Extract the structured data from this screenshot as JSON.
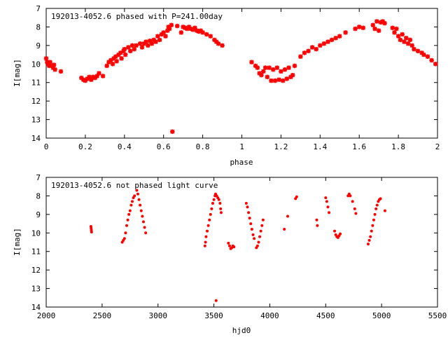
{
  "chart_data": [
    {
      "type": "scatter",
      "title": "192013-4052.6 phased with P=241.00day",
      "xlabel": "phase",
      "ylabel": "I[mag]",
      "xlim": [
        0,
        2
      ],
      "ylim": [
        14,
        7
      ],
      "y_inverted": true,
      "xticks": [
        0,
        0.2,
        0.4,
        0.6,
        0.8,
        1,
        1.2,
        1.4,
        1.6,
        1.8,
        2
      ],
      "xtick_labels": [
        "0",
        "0.2",
        "0.4",
        "0.6",
        "0.8",
        "1",
        "1.2",
        "1.4",
        "1.6",
        "1.8",
        "2"
      ],
      "yticks": [
        7,
        8,
        9,
        10,
        11,
        12,
        13,
        14
      ],
      "ytick_labels": [
        "7",
        "8",
        "9",
        "10",
        "11",
        "12",
        "13",
        "14"
      ],
      "grid": false,
      "marker_color": "#ff0000",
      "marker": "star",
      "points": [
        [
          0.0,
          9.7
        ],
        [
          0.005,
          9.9
        ],
        [
          0.01,
          10.0
        ],
        [
          0.015,
          10.1
        ],
        [
          0.02,
          9.9
        ],
        [
          0.03,
          10.1
        ],
        [
          0.035,
          10.2
        ],
        [
          0.04,
          10.05
        ],
        [
          0.045,
          10.3
        ],
        [
          0.075,
          10.4
        ],
        [
          0.18,
          10.75
        ],
        [
          0.19,
          10.85
        ],
        [
          0.2,
          10.9
        ],
        [
          0.21,
          10.8
        ],
        [
          0.22,
          10.7
        ],
        [
          0.23,
          10.85
        ],
        [
          0.24,
          10.7
        ],
        [
          0.25,
          10.75
        ],
        [
          0.26,
          10.65
        ],
        [
          0.27,
          10.5
        ],
        [
          0.29,
          10.65
        ],
        [
          0.31,
          10.1
        ],
        [
          0.32,
          9.9
        ],
        [
          0.33,
          9.8
        ],
        [
          0.34,
          10.0
        ],
        [
          0.345,
          9.7
        ],
        [
          0.355,
          9.6
        ],
        [
          0.36,
          9.85
        ],
        [
          0.37,
          9.5
        ],
        [
          0.38,
          9.4
        ],
        [
          0.385,
          9.7
        ],
        [
          0.395,
          9.3
        ],
        [
          0.4,
          9.2
        ],
        [
          0.405,
          9.5
        ],
        [
          0.42,
          9.1
        ],
        [
          0.43,
          9.3
        ],
        [
          0.44,
          9.0
        ],
        [
          0.45,
          9.2
        ],
        [
          0.46,
          9.0
        ],
        [
          0.48,
          8.9
        ],
        [
          0.49,
          9.1
        ],
        [
          0.5,
          8.9
        ],
        [
          0.51,
          8.8
        ],
        [
          0.52,
          9.0
        ],
        [
          0.53,
          8.75
        ],
        [
          0.54,
          8.9
        ],
        [
          0.55,
          8.7
        ],
        [
          0.56,
          8.8
        ],
        [
          0.57,
          8.5
        ],
        [
          0.58,
          8.7
        ],
        [
          0.59,
          8.4
        ],
        [
          0.6,
          8.3
        ],
        [
          0.61,
          8.5
        ],
        [
          0.62,
          8.2
        ],
        [
          0.625,
          8.0
        ],
        [
          0.63,
          8.1
        ],
        [
          0.64,
          7.9
        ],
        [
          0.645,
          13.65
        ],
        [
          0.67,
          7.95
        ],
        [
          0.69,
          8.3
        ],
        [
          0.7,
          8.0
        ],
        [
          0.71,
          8.05
        ],
        [
          0.72,
          8.1
        ],
        [
          0.73,
          8.0
        ],
        [
          0.74,
          8.1
        ],
        [
          0.75,
          8.15
        ],
        [
          0.76,
          8.05
        ],
        [
          0.77,
          8.2
        ],
        [
          0.78,
          8.25
        ],
        [
          0.79,
          8.2
        ],
        [
          0.8,
          8.3
        ],
        [
          0.82,
          8.4
        ],
        [
          0.84,
          8.5
        ],
        [
          0.86,
          8.7
        ],
        [
          0.87,
          8.8
        ],
        [
          0.88,
          8.9
        ],
        [
          0.9,
          9.0
        ],
        [
          1.05,
          9.9
        ],
        [
          1.07,
          10.1
        ],
        [
          1.08,
          10.2
        ],
        [
          1.09,
          10.5
        ],
        [
          1.1,
          10.6
        ],
        [
          1.11,
          10.4
        ],
        [
          1.12,
          10.2
        ],
        [
          1.13,
          10.7
        ],
        [
          1.14,
          10.2
        ],
        [
          1.15,
          10.9
        ],
        [
          1.16,
          10.3
        ],
        [
          1.17,
          10.9
        ],
        [
          1.18,
          10.2
        ],
        [
          1.19,
          10.85
        ],
        [
          1.2,
          10.4
        ],
        [
          1.21,
          10.9
        ],
        [
          1.22,
          10.3
        ],
        [
          1.23,
          10.8
        ],
        [
          1.24,
          10.2
        ],
        [
          1.25,
          10.7
        ],
        [
          1.26,
          10.6
        ],
        [
          1.27,
          10.1
        ],
        [
          1.3,
          9.6
        ],
        [
          1.32,
          9.4
        ],
        [
          1.34,
          9.3
        ],
        [
          1.36,
          9.1
        ],
        [
          1.38,
          9.2
        ],
        [
          1.4,
          9.0
        ],
        [
          1.42,
          8.9
        ],
        [
          1.44,
          8.8
        ],
        [
          1.46,
          8.7
        ],
        [
          1.48,
          8.6
        ],
        [
          1.5,
          8.5
        ],
        [
          1.53,
          8.3
        ],
        [
          1.58,
          8.1
        ],
        [
          1.6,
          8.0
        ],
        [
          1.62,
          8.05
        ],
        [
          1.67,
          7.9
        ],
        [
          1.68,
          8.1
        ],
        [
          1.69,
          7.7
        ],
        [
          1.7,
          8.2
        ],
        [
          1.71,
          7.75
        ],
        [
          1.72,
          7.7
        ],
        [
          1.73,
          7.8
        ],
        [
          1.77,
          8.05
        ],
        [
          1.78,
          8.3
        ],
        [
          1.79,
          8.1
        ],
        [
          1.8,
          8.5
        ],
        [
          1.81,
          8.7
        ],
        [
          1.82,
          8.4
        ],
        [
          1.83,
          8.8
        ],
        [
          1.84,
          8.6
        ],
        [
          1.85,
          8.9
        ],
        [
          1.86,
          8.7
        ],
        [
          1.87,
          9.0
        ],
        [
          1.88,
          9.2
        ],
        [
          1.9,
          9.3
        ],
        [
          1.92,
          9.4
        ],
        [
          1.93,
          9.5
        ],
        [
          1.95,
          9.6
        ],
        [
          1.97,
          9.8
        ],
        [
          1.99,
          10.0
        ]
      ]
    },
    {
      "type": "scatter",
      "title": "192013-4052.6 not phased light curve",
      "xlabel": "hjd0",
      "ylabel": "I[mag]",
      "xlim": [
        2000,
        5500
      ],
      "ylim": [
        14,
        7
      ],
      "y_inverted": true,
      "xticks": [
        2000,
        2500,
        3000,
        3500,
        4000,
        4500,
        5000,
        5500
      ],
      "xtick_labels": [
        "2000",
        "2500",
        "3000",
        "3500",
        "4000",
        "4500",
        "5000",
        "5500"
      ],
      "yticks": [
        7,
        8,
        9,
        10,
        11,
        12,
        13,
        14
      ],
      "ytick_labels": [
        "7",
        "8",
        "9",
        "10",
        "11",
        "12",
        "13",
        "14"
      ],
      "grid": false,
      "marker_color": "#ff0000",
      "marker": "dot",
      "points": [
        [
          2400,
          9.65
        ],
        [
          2402,
          9.75
        ],
        [
          2404,
          9.85
        ],
        [
          2406,
          9.95
        ],
        [
          2680,
          10.5
        ],
        [
          2690,
          10.4
        ],
        [
          2700,
          10.3
        ],
        [
          2710,
          10.0
        ],
        [
          2720,
          9.6
        ],
        [
          2730,
          9.3
        ],
        [
          2740,
          9.0
        ],
        [
          2750,
          8.8
        ],
        [
          2760,
          8.5
        ],
        [
          2770,
          8.3
        ],
        [
          2780,
          8.1
        ],
        [
          2790,
          8.0
        ],
        [
          2810,
          7.7
        ],
        [
          2820,
          7.9
        ],
        [
          2830,
          8.2
        ],
        [
          2840,
          8.5
        ],
        [
          2850,
          8.8
        ],
        [
          2860,
          9.1
        ],
        [
          2870,
          9.4
        ],
        [
          2880,
          9.7
        ],
        [
          2890,
          10.0
        ],
        [
          3420,
          10.7
        ],
        [
          3425,
          10.5
        ],
        [
          3430,
          10.2
        ],
        [
          3440,
          9.9
        ],
        [
          3450,
          9.6
        ],
        [
          3460,
          9.3
        ],
        [
          3470,
          9.0
        ],
        [
          3480,
          8.7
        ],
        [
          3490,
          8.4
        ],
        [
          3500,
          8.2
        ],
        [
          3510,
          8.0
        ],
        [
          3515,
          7.9
        ],
        [
          3520,
          13.65
        ],
        [
          3525,
          8.0
        ],
        [
          3535,
          8.1
        ],
        [
          3545,
          8.2
        ],
        [
          3555,
          8.4
        ],
        [
          3560,
          8.7
        ],
        [
          3565,
          8.9
        ],
        [
          3630,
          10.55
        ],
        [
          3640,
          10.7
        ],
        [
          3650,
          10.85
        ],
        [
          3660,
          10.8
        ],
        [
          3670,
          10.7
        ],
        [
          3680,
          10.75
        ],
        [
          3790,
          8.4
        ],
        [
          3800,
          8.6
        ],
        [
          3810,
          8.9
        ],
        [
          3820,
          9.2
        ],
        [
          3830,
          9.5
        ],
        [
          3840,
          9.8
        ],
        [
          3850,
          10.1
        ],
        [
          3860,
          10.3
        ],
        [
          3880,
          10.8
        ],
        [
          3890,
          10.7
        ],
        [
          3900,
          10.5
        ],
        [
          3910,
          10.2
        ],
        [
          3920,
          9.9
        ],
        [
          3930,
          9.6
        ],
        [
          3940,
          9.3
        ],
        [
          4130,
          9.8
        ],
        [
          4160,
          9.1
        ],
        [
          4230,
          8.15
        ],
        [
          4240,
          8.05
        ],
        [
          4420,
          9.3
        ],
        [
          4425,
          9.6
        ],
        [
          4500,
          8.1
        ],
        [
          4510,
          8.3
        ],
        [
          4520,
          8.6
        ],
        [
          4530,
          8.9
        ],
        [
          4580,
          9.9
        ],
        [
          4590,
          10.1
        ],
        [
          4600,
          10.2
        ],
        [
          4610,
          10.25
        ],
        [
          4620,
          10.15
        ],
        [
          4630,
          10.05
        ],
        [
          4700,
          8.0
        ],
        [
          4710,
          7.9
        ],
        [
          4720,
          8.0
        ],
        [
          4740,
          8.3
        ],
        [
          4760,
          8.7
        ],
        [
          4770,
          8.95
        ],
        [
          4880,
          10.6
        ],
        [
          4890,
          10.4
        ],
        [
          4900,
          10.2
        ],
        [
          4910,
          9.9
        ],
        [
          4920,
          9.6
        ],
        [
          4930,
          9.3
        ],
        [
          4940,
          9.0
        ],
        [
          4950,
          8.7
        ],
        [
          4960,
          8.5
        ],
        [
          4970,
          8.3
        ],
        [
          4980,
          8.2
        ],
        [
          4990,
          8.15
        ],
        [
          5030,
          8.8
        ]
      ]
    }
  ]
}
